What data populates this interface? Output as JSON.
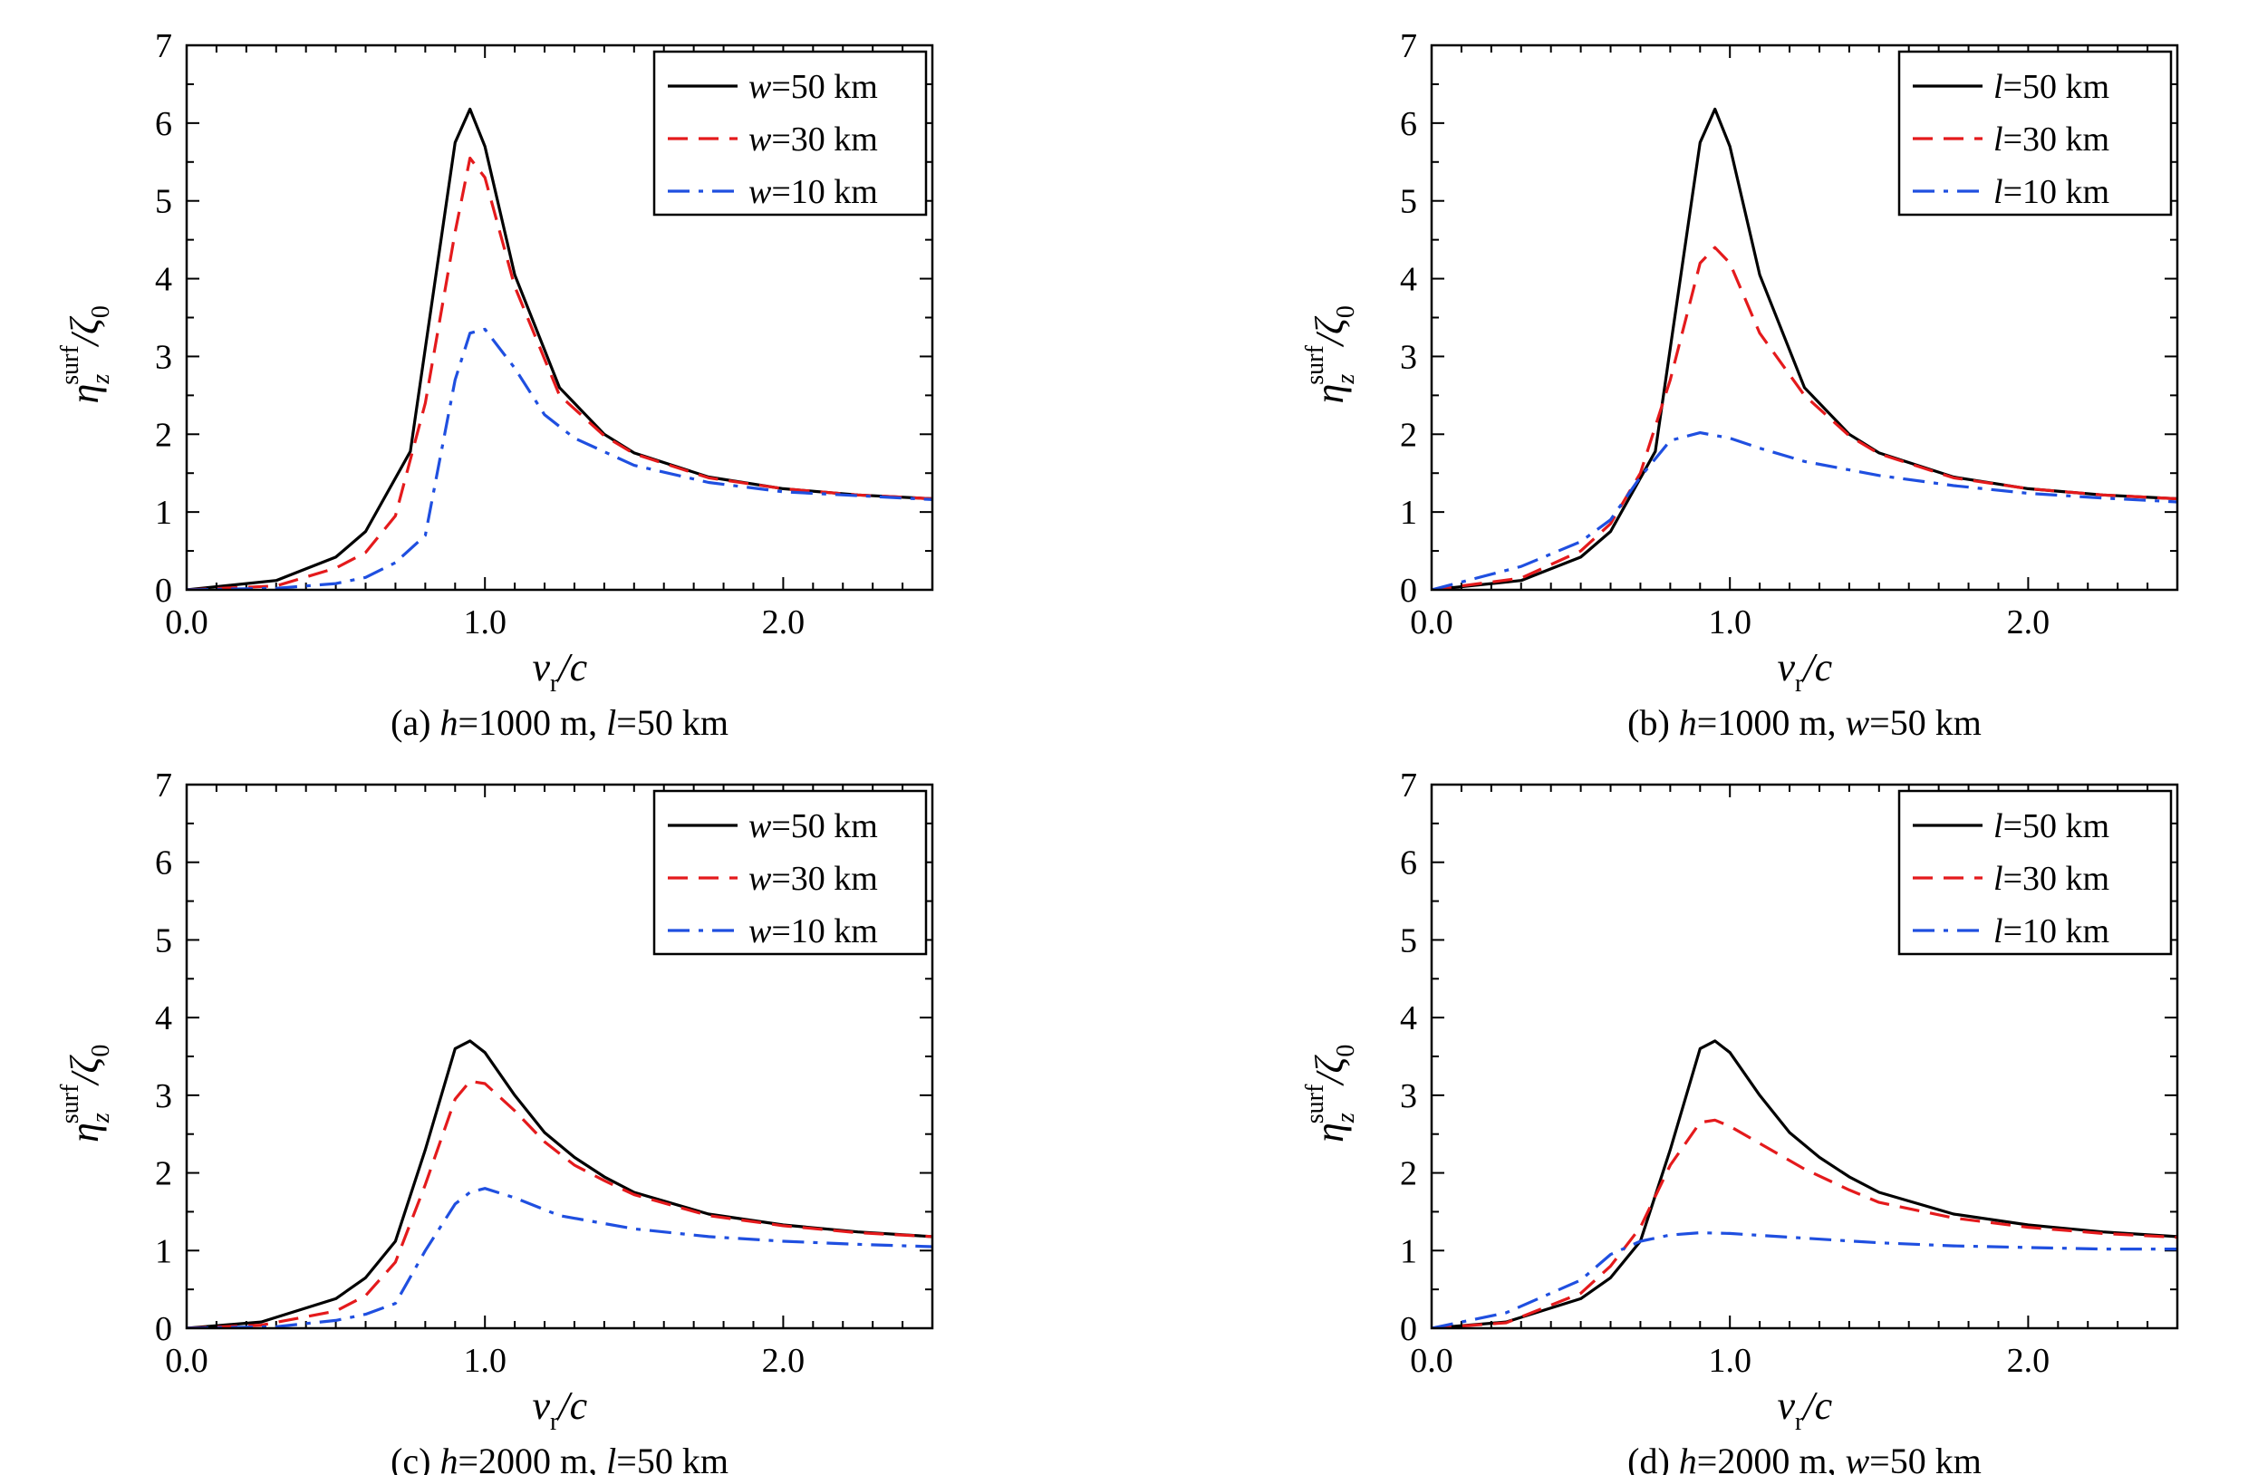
{
  "colors": {
    "black": "#000000",
    "red": "#e41a1c",
    "blue": "#1f4fe0"
  },
  "chart_data": [
    {
      "type": "line",
      "panel": "a",
      "caption": {
        "prefix": "(a) ",
        "p1var": "h",
        "p1val": "=1000 m, ",
        "p2var": "l",
        "p2val": "=50 km"
      },
      "xlabel": {
        "v": "v",
        "sub": "r",
        "rest": "/c"
      },
      "ylabel": {
        "eta": "η",
        "sub": "z",
        "sup": "surf",
        "rest": "/ζ",
        "sub0": "0"
      },
      "xlim": [
        0,
        2.5
      ],
      "ylim": [
        0,
        7
      ],
      "xticks": [
        "0.0",
        "1.0",
        "2.0"
      ],
      "yticks": [
        "0",
        "1",
        "2",
        "3",
        "4",
        "5",
        "6",
        "7"
      ],
      "legend_position": "top-right",
      "series": [
        {
          "var": "w",
          "value": "=50 km",
          "style": "solid",
          "color": "#000000",
          "points": [
            [
              0,
              0
            ],
            [
              0.3,
              0.12
            ],
            [
              0.5,
              0.42
            ],
            [
              0.6,
              0.75
            ],
            [
              0.75,
              1.78
            ],
            [
              0.9,
              5.75
            ],
            [
              0.95,
              6.18
            ],
            [
              1.0,
              5.7
            ],
            [
              1.1,
              4.05
            ],
            [
              1.25,
              2.6
            ],
            [
              1.4,
              2.0
            ],
            [
              1.5,
              1.76
            ],
            [
              1.75,
              1.45
            ],
            [
              2.0,
              1.3
            ],
            [
              2.25,
              1.22
            ],
            [
              2.5,
              1.17
            ]
          ]
        },
        {
          "var": "w",
          "value": "=30 km",
          "style": "dashed",
          "color": "#e41a1c",
          "points": [
            [
              0,
              0
            ],
            [
              0.3,
              0.05
            ],
            [
              0.5,
              0.28
            ],
            [
              0.6,
              0.48
            ],
            [
              0.7,
              0.95
            ],
            [
              0.8,
              2.4
            ],
            [
              0.9,
              4.6
            ],
            [
              0.95,
              5.55
            ],
            [
              1.0,
              5.3
            ],
            [
              1.1,
              3.9
            ],
            [
              1.25,
              2.5
            ],
            [
              1.4,
              1.98
            ],
            [
              1.5,
              1.75
            ],
            [
              1.75,
              1.44
            ],
            [
              2.0,
              1.3
            ],
            [
              2.25,
              1.22
            ],
            [
              2.5,
              1.17
            ]
          ]
        },
        {
          "var": "w",
          "value": "=10 km",
          "style": "dashdot",
          "color": "#1f4fe0",
          "points": [
            [
              0,
              0
            ],
            [
              0.3,
              0.02
            ],
            [
              0.5,
              0.08
            ],
            [
              0.6,
              0.16
            ],
            [
              0.7,
              0.35
            ],
            [
              0.8,
              0.7
            ],
            [
              0.85,
              1.7
            ],
            [
              0.9,
              2.7
            ],
            [
              0.95,
              3.3
            ],
            [
              1.0,
              3.35
            ],
            [
              1.1,
              2.85
            ],
            [
              1.2,
              2.25
            ],
            [
              1.3,
              1.95
            ],
            [
              1.5,
              1.6
            ],
            [
              1.75,
              1.38
            ],
            [
              2.0,
              1.26
            ],
            [
              2.5,
              1.16
            ]
          ]
        }
      ]
    },
    {
      "type": "line",
      "panel": "b",
      "caption": {
        "prefix": "(b) ",
        "p1var": "h",
        "p1val": "=1000 m, ",
        "p2var": "w",
        "p2val": "=50 km"
      },
      "xlabel": {
        "v": "v",
        "sub": "r",
        "rest": "/c"
      },
      "ylabel": {
        "eta": "η",
        "sub": "z",
        "sup": "surf",
        "rest": "/ζ",
        "sub0": "0"
      },
      "xlim": [
        0,
        2.5
      ],
      "ylim": [
        0,
        7
      ],
      "xticks": [
        "0.0",
        "1.0",
        "2.0"
      ],
      "yticks": [
        "0",
        "1",
        "2",
        "3",
        "4",
        "5",
        "6",
        "7"
      ],
      "legend_position": "top-right",
      "series": [
        {
          "var": "l",
          "value": "=50 km",
          "style": "solid",
          "color": "#000000",
          "points": [
            [
              0,
              0
            ],
            [
              0.3,
              0.12
            ],
            [
              0.5,
              0.42
            ],
            [
              0.6,
              0.75
            ],
            [
              0.75,
              1.78
            ],
            [
              0.9,
              5.75
            ],
            [
              0.95,
              6.18
            ],
            [
              1.0,
              5.7
            ],
            [
              1.1,
              4.05
            ],
            [
              1.25,
              2.6
            ],
            [
              1.4,
              2.0
            ],
            [
              1.5,
              1.76
            ],
            [
              1.75,
              1.45
            ],
            [
              2.0,
              1.3
            ],
            [
              2.25,
              1.22
            ],
            [
              2.5,
              1.17
            ]
          ]
        },
        {
          "var": "l",
          "value": "=30 km",
          "style": "dashed",
          "color": "#e41a1c",
          "points": [
            [
              0,
              0
            ],
            [
              0.3,
              0.15
            ],
            [
              0.5,
              0.5
            ],
            [
              0.6,
              0.85
            ],
            [
              0.7,
              1.5
            ],
            [
              0.8,
              2.7
            ],
            [
              0.9,
              4.2
            ],
            [
              0.95,
              4.4
            ],
            [
              1.0,
              4.2
            ],
            [
              1.1,
              3.3
            ],
            [
              1.25,
              2.5
            ],
            [
              1.4,
              1.98
            ],
            [
              1.5,
              1.75
            ],
            [
              1.75,
              1.44
            ],
            [
              2.0,
              1.3
            ],
            [
              2.25,
              1.22
            ],
            [
              2.5,
              1.17
            ]
          ]
        },
        {
          "var": "l",
          "value": "=10 km",
          "style": "dashdot",
          "color": "#1f4fe0",
          "points": [
            [
              0,
              0
            ],
            [
              0.3,
              0.3
            ],
            [
              0.5,
              0.62
            ],
            [
              0.6,
              0.9
            ],
            [
              0.7,
              1.45
            ],
            [
              0.8,
              1.92
            ],
            [
              0.9,
              2.02
            ],
            [
              1.0,
              1.95
            ],
            [
              1.1,
              1.82
            ],
            [
              1.25,
              1.65
            ],
            [
              1.5,
              1.47
            ],
            [
              1.75,
              1.34
            ],
            [
              2.0,
              1.24
            ],
            [
              2.25,
              1.18
            ],
            [
              2.5,
              1.13
            ]
          ]
        }
      ]
    },
    {
      "type": "line",
      "panel": "c",
      "caption": {
        "prefix": "(c) ",
        "p1var": "h",
        "p1val": "=2000 m, ",
        "p2var": "l",
        "p2val": "=50 km"
      },
      "xlabel": {
        "v": "v",
        "sub": "r",
        "rest": "/c"
      },
      "ylabel": {
        "eta": "η",
        "sub": "z",
        "sup": "surf",
        "rest": "/ζ",
        "sub0": "0"
      },
      "xlim": [
        0,
        2.5
      ],
      "ylim": [
        0,
        7
      ],
      "xticks": [
        "0.0",
        "1.0",
        "2.0"
      ],
      "yticks": [
        "0",
        "1",
        "2",
        "3",
        "4",
        "5",
        "6",
        "7"
      ],
      "legend_position": "top-right",
      "series": [
        {
          "var": "w",
          "value": "=50 km",
          "style": "solid",
          "color": "#000000",
          "points": [
            [
              0,
              0
            ],
            [
              0.25,
              0.08
            ],
            [
              0.5,
              0.38
            ],
            [
              0.6,
              0.65
            ],
            [
              0.7,
              1.12
            ],
            [
              0.8,
              2.3
            ],
            [
              0.9,
              3.6
            ],
            [
              0.95,
              3.7
            ],
            [
              1.0,
              3.55
            ],
            [
              1.1,
              3.0
            ],
            [
              1.2,
              2.52
            ],
            [
              1.3,
              2.2
            ],
            [
              1.4,
              1.95
            ],
            [
              1.5,
              1.75
            ],
            [
              1.75,
              1.47
            ],
            [
              2.0,
              1.33
            ],
            [
              2.25,
              1.24
            ],
            [
              2.5,
              1.18
            ]
          ]
        },
        {
          "var": "w",
          "value": "=30 km",
          "style": "dashed",
          "color": "#e41a1c",
          "points": [
            [
              0,
              0
            ],
            [
              0.25,
              0.04
            ],
            [
              0.5,
              0.22
            ],
            [
              0.6,
              0.42
            ],
            [
              0.7,
              0.85
            ],
            [
              0.8,
              1.85
            ],
            [
              0.9,
              2.95
            ],
            [
              0.95,
              3.18
            ],
            [
              1.0,
              3.15
            ],
            [
              1.1,
              2.8
            ],
            [
              1.2,
              2.4
            ],
            [
              1.3,
              2.1
            ],
            [
              1.4,
              1.9
            ],
            [
              1.5,
              1.72
            ],
            [
              1.75,
              1.45
            ],
            [
              2.0,
              1.32
            ],
            [
              2.25,
              1.23
            ],
            [
              2.5,
              1.18
            ]
          ]
        },
        {
          "var": "w",
          "value": "=10 km",
          "style": "dashdot",
          "color": "#1f4fe0",
          "points": [
            [
              0,
              0
            ],
            [
              0.3,
              0.02
            ],
            [
              0.5,
              0.1
            ],
            [
              0.6,
              0.18
            ],
            [
              0.7,
              0.32
            ],
            [
              0.8,
              1.0
            ],
            [
              0.9,
              1.6
            ],
            [
              0.95,
              1.75
            ],
            [
              1.0,
              1.8
            ],
            [
              1.1,
              1.68
            ],
            [
              1.25,
              1.45
            ],
            [
              1.5,
              1.28
            ],
            [
              1.75,
              1.18
            ],
            [
              2.0,
              1.12
            ],
            [
              2.25,
              1.08
            ],
            [
              2.5,
              1.05
            ]
          ]
        }
      ]
    },
    {
      "type": "line",
      "panel": "d",
      "caption": {
        "prefix": "(d) ",
        "p1var": "h",
        "p1val": "=2000 m, ",
        "p2var": "w",
        "p2val": "=50 km"
      },
      "xlabel": {
        "v": "v",
        "sub": "r",
        "rest": "/c"
      },
      "ylabel": {
        "eta": "η",
        "sub": "z",
        "sup": "surf",
        "rest": "/ζ",
        "sub0": "0"
      },
      "xlim": [
        0,
        2.5
      ],
      "ylim": [
        0,
        7
      ],
      "xticks": [
        "0.0",
        "1.0",
        "2.0"
      ],
      "yticks": [
        "0",
        "1",
        "2",
        "3",
        "4",
        "5",
        "6",
        "7"
      ],
      "legend_position": "top-right",
      "series": [
        {
          "var": "l",
          "value": "=50 km",
          "style": "solid",
          "color": "#000000",
          "points": [
            [
              0,
              0
            ],
            [
              0.25,
              0.08
            ],
            [
              0.5,
              0.38
            ],
            [
              0.6,
              0.65
            ],
            [
              0.7,
              1.12
            ],
            [
              0.8,
              2.3
            ],
            [
              0.9,
              3.6
            ],
            [
              0.95,
              3.7
            ],
            [
              1.0,
              3.55
            ],
            [
              1.1,
              3.0
            ],
            [
              1.2,
              2.52
            ],
            [
              1.3,
              2.2
            ],
            [
              1.4,
              1.95
            ],
            [
              1.5,
              1.75
            ],
            [
              1.75,
              1.47
            ],
            [
              2.0,
              1.33
            ],
            [
              2.25,
              1.24
            ],
            [
              2.5,
              1.18
            ]
          ]
        },
        {
          "var": "l",
          "value": "=30 km",
          "style": "dashed",
          "color": "#e41a1c",
          "points": [
            [
              0,
              0
            ],
            [
              0.25,
              0.07
            ],
            [
              0.5,
              0.45
            ],
            [
              0.6,
              0.8
            ],
            [
              0.7,
              1.3
            ],
            [
              0.8,
              2.1
            ],
            [
              0.9,
              2.65
            ],
            [
              0.95,
              2.68
            ],
            [
              1.0,
              2.6
            ],
            [
              1.1,
              2.38
            ],
            [
              1.25,
              2.05
            ],
            [
              1.4,
              1.78
            ],
            [
              1.5,
              1.62
            ],
            [
              1.75,
              1.42
            ],
            [
              2.0,
              1.3
            ],
            [
              2.25,
              1.22
            ],
            [
              2.5,
              1.17
            ]
          ]
        },
        {
          "var": "l",
          "value": "=10 km",
          "style": "dashdot",
          "color": "#1f4fe0",
          "points": [
            [
              0,
              0
            ],
            [
              0.25,
              0.2
            ],
            [
              0.5,
              0.62
            ],
            [
              0.6,
              0.95
            ],
            [
              0.7,
              1.12
            ],
            [
              0.8,
              1.2
            ],
            [
              0.9,
              1.23
            ],
            [
              1.0,
              1.22
            ],
            [
              1.25,
              1.16
            ],
            [
              1.5,
              1.1
            ],
            [
              1.75,
              1.06
            ],
            [
              2.0,
              1.04
            ],
            [
              2.25,
              1.02
            ],
            [
              2.5,
              1.02
            ]
          ]
        }
      ]
    }
  ]
}
